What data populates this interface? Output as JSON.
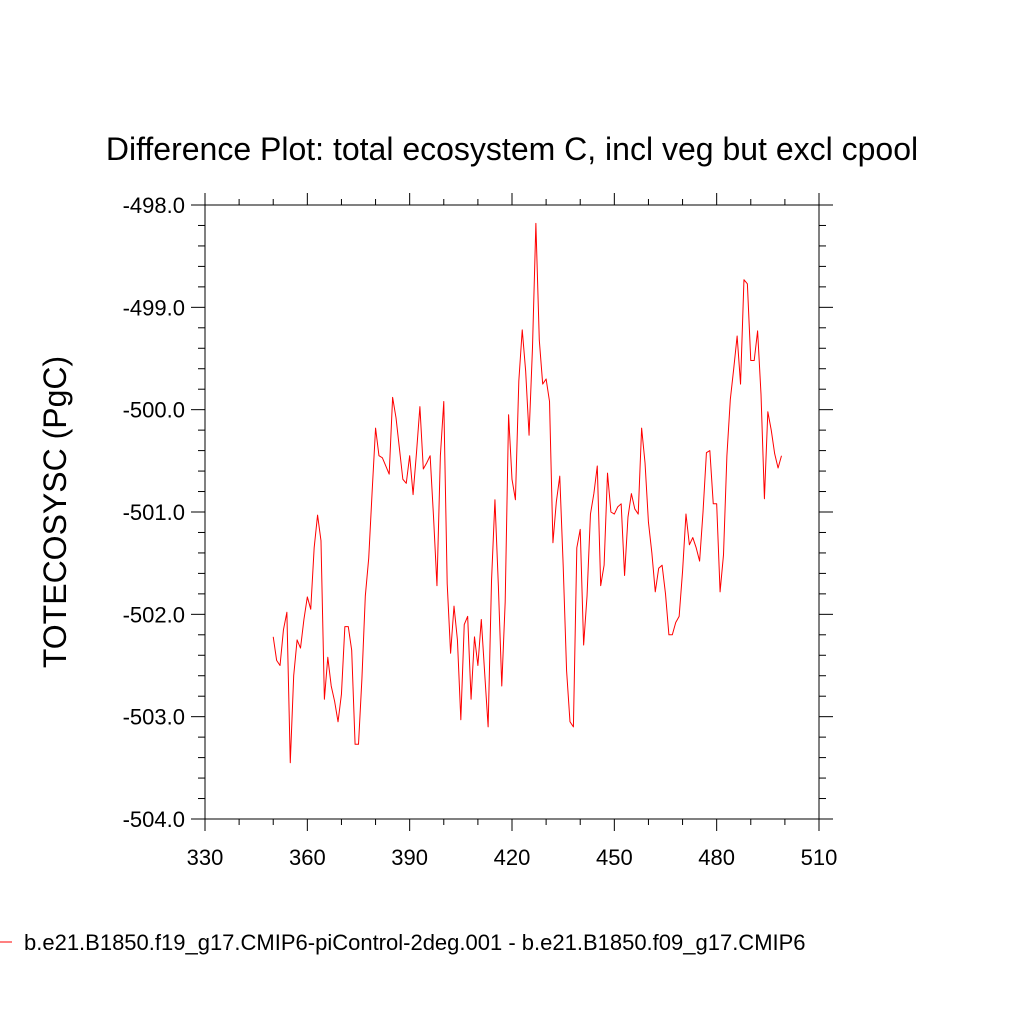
{
  "chart_data": {
    "type": "line",
    "title": "Difference Plot: total ecosystem C, incl veg but excl cpool",
    "xlabel": "",
    "ylabel": "TOTECOSYSC  (PgC)",
    "xlim": [
      330,
      510
    ],
    "ylim": [
      -504.0,
      -498.0
    ],
    "x_ticks": [
      330,
      360,
      390,
      420,
      450,
      480,
      510
    ],
    "x_tick_labels": [
      "330",
      "360",
      "390",
      "420",
      "450",
      "480",
      "510"
    ],
    "y_ticks": [
      -504.0,
      -503.0,
      -502.0,
      -501.0,
      -500.0,
      -499.0,
      -498.0
    ],
    "y_tick_labels": [
      "-504.0",
      "-503.0",
      "-502.0",
      "-501.0",
      "-500.0",
      "-499.0",
      "-498.0"
    ],
    "grid": false,
    "legend_position": "bottom",
    "series": [
      {
        "name": "b.e21.B1850.f19_g17.CMIP6-piControl-2deg.001 - b.e21.B1850.f09_g17.CMIP6",
        "color": "#ff0000",
        "x": [
          350,
          351,
          352,
          353,
          354,
          355,
          356,
          357,
          358,
          359,
          360,
          361,
          362,
          363,
          364,
          365,
          366,
          367,
          368,
          369,
          370,
          371,
          372,
          373,
          374,
          375,
          376,
          377,
          378,
          379,
          380,
          381,
          382,
          383,
          384,
          385,
          386,
          387,
          388,
          389,
          390,
          391,
          392,
          393,
          394,
          395,
          396,
          397,
          398,
          399,
          400,
          401,
          402,
          403,
          404,
          405,
          406,
          407,
          408,
          409,
          410,
          411,
          412,
          413,
          414,
          415,
          416,
          417,
          418,
          419,
          420,
          421,
          422,
          423,
          424,
          425,
          426,
          427,
          428,
          429,
          430,
          431,
          432,
          433,
          434,
          435,
          436,
          437,
          438,
          439,
          440,
          441,
          442,
          443,
          444,
          445,
          446,
          447,
          448,
          449,
          450,
          451,
          452,
          453,
          454,
          455,
          456,
          457,
          458,
          459,
          460,
          461,
          462,
          463,
          464,
          465,
          466,
          467,
          468,
          469,
          470,
          471,
          472,
          473,
          474,
          475,
          476,
          477,
          478,
          479,
          480,
          481,
          482,
          483,
          484,
          485,
          486,
          487,
          488,
          489,
          490,
          491,
          492,
          493,
          494,
          495,
          496,
          497,
          498,
          499
        ],
        "y": [
          -502.22,
          -502.45,
          -502.5,
          -502.15,
          -501.98,
          -503.45,
          -502.6,
          -502.25,
          -502.33,
          -502.05,
          -501.83,
          -501.95,
          -501.35,
          -501.03,
          -501.28,
          -502.83,
          -502.42,
          -502.7,
          -502.85,
          -503.05,
          -502.78,
          -502.12,
          -502.12,
          -502.35,
          -503.27,
          -503.27,
          -502.63,
          -501.82,
          -501.45,
          -500.8,
          -500.18,
          -500.45,
          -500.47,
          -500.55,
          -500.63,
          -499.88,
          -500.08,
          -500.38,
          -500.68,
          -500.72,
          -500.45,
          -500.83,
          -500.42,
          -499.97,
          -500.58,
          -500.52,
          -500.45,
          -501.05,
          -501.72,
          -500.45,
          -499.92,
          -501.7,
          -502.38,
          -501.92,
          -502.25,
          -503.03,
          -502.1,
          -502.02,
          -502.83,
          -502.22,
          -502.5,
          -502.05,
          -502.58,
          -503.1,
          -501.67,
          -500.88,
          -501.72,
          -502.7,
          -501.88,
          -500.05,
          -500.68,
          -500.88,
          -499.72,
          -499.22,
          -499.62,
          -500.25,
          -499.4,
          -498.18,
          -499.32,
          -499.75,
          -499.7,
          -499.92,
          -501.3,
          -500.9,
          -500.65,
          -501.52,
          -502.55,
          -503.05,
          -503.1,
          -501.35,
          -501.17,
          -502.3,
          -501.82,
          -501.02,
          -500.82,
          -500.55,
          -501.72,
          -501.52,
          -500.62,
          -501.0,
          -501.02,
          -500.95,
          -500.92,
          -501.62,
          -501.05,
          -500.82,
          -500.97,
          -501.02,
          -500.18,
          -500.52,
          -501.1,
          -501.4,
          -501.78,
          -501.55,
          -501.52,
          -501.8,
          -502.2,
          -502.2,
          -502.08,
          -502.02,
          -501.58,
          -501.02,
          -501.32,
          -501.25,
          -501.35,
          -501.48,
          -501.0,
          -500.42,
          -500.4,
          -500.92,
          -500.92,
          -501.78,
          -501.42,
          -500.45,
          -499.9,
          -499.6,
          -499.28,
          -499.75,
          -498.73,
          -498.77,
          -499.52,
          -499.52,
          -499.23,
          -499.85,
          -500.87,
          -500.02,
          -500.2,
          -500.43,
          -500.57,
          -500.45
        ]
      }
    ]
  }
}
